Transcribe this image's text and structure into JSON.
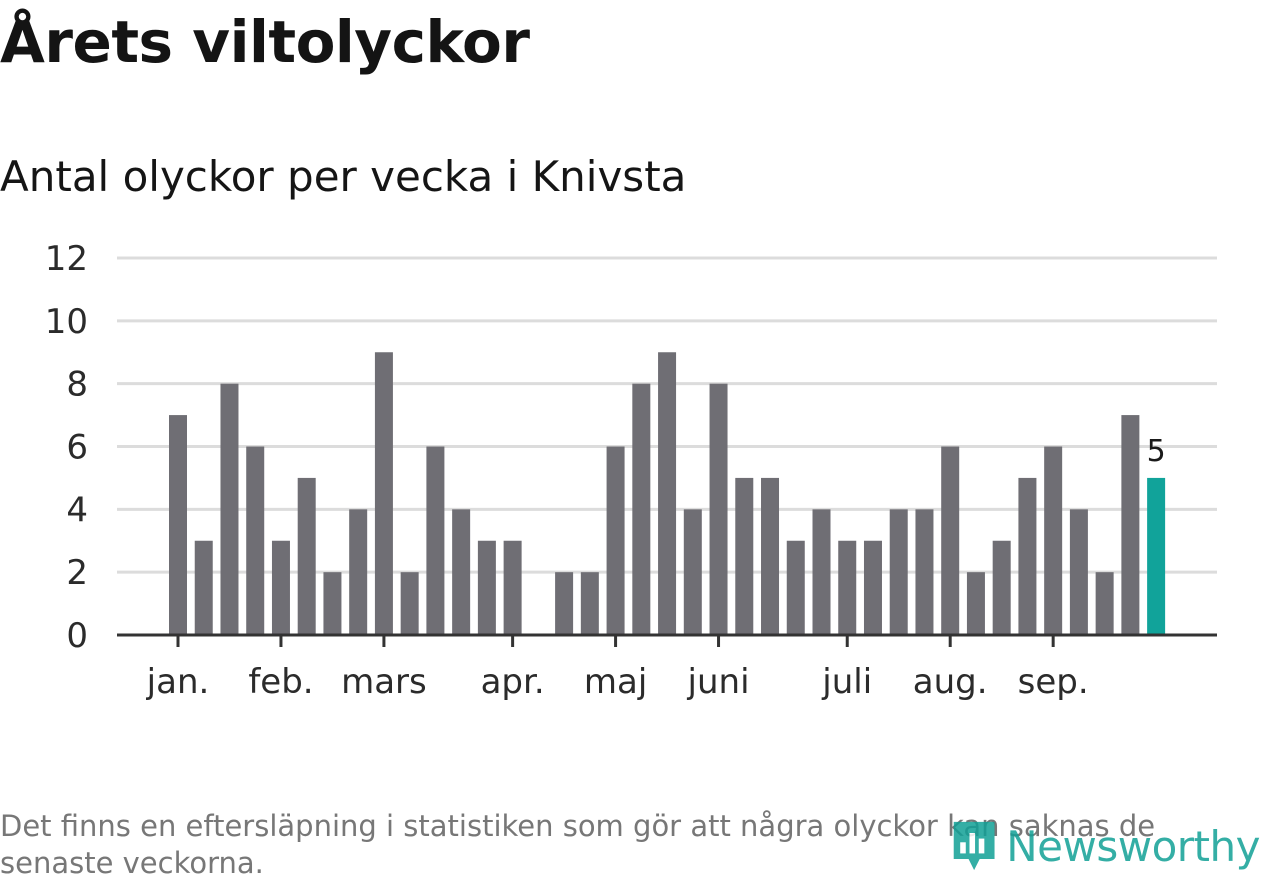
{
  "header": {
    "title": "Årets viltolyckor",
    "subtitle": "Antal olyckor per vecka i Knivsta"
  },
  "footer": {
    "note": "Det finns en eftersläpning i statistiken som gör att några olyckor kan saknas de senaste veckorna.",
    "logo_text": "Newsworthy"
  },
  "colors": {
    "bar": "#6f6e74",
    "highlight": "#11a39a",
    "grid": "#dcdcdc",
    "axis": "#333333"
  },
  "chart_data": {
    "type": "bar",
    "title": "Årets viltolyckor",
    "subtitle": "Antal olyckor per vecka i Knivsta",
    "xlabel": "",
    "ylabel": "",
    "ylim": [
      0,
      12
    ],
    "yticks": [
      0,
      2,
      4,
      6,
      8,
      10,
      12
    ],
    "grid": true,
    "x_tick_labels": [
      "jan.",
      "feb.",
      "mars",
      "apr.",
      "maj",
      "juni",
      "juli",
      "aug.",
      "sep."
    ],
    "x_tick_weeks": [
      1,
      5,
      9,
      14,
      18,
      22,
      27,
      31,
      35
    ],
    "weeks": [
      1,
      2,
      3,
      4,
      5,
      6,
      7,
      8,
      9,
      10,
      11,
      12,
      13,
      14,
      15,
      16,
      17,
      18,
      19,
      20,
      21,
      22,
      23,
      24,
      25,
      26,
      27,
      28,
      29,
      30,
      31,
      32,
      33,
      34,
      35,
      36,
      37,
      38,
      39
    ],
    "values": [
      7,
      3,
      8,
      6,
      3,
      5,
      2,
      4,
      9,
      2,
      6,
      4,
      3,
      3,
      0,
      2,
      2,
      6,
      8,
      9,
      4,
      8,
      5,
      5,
      3,
      4,
      3,
      3,
      4,
      4,
      6,
      2,
      3,
      5,
      6,
      4,
      2,
      7,
      5
    ],
    "highlight_last": true,
    "data_labels": [
      {
        "week": 39,
        "value": 5,
        "text": "5"
      }
    ]
  }
}
